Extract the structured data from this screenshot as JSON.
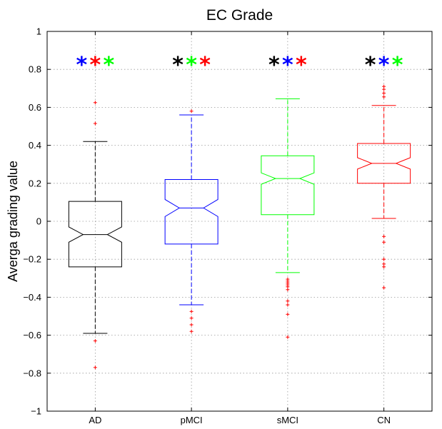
{
  "chart_data": {
    "type": "box",
    "title": "EC Grade",
    "xlabel": "",
    "ylabel": "Averga grading value",
    "ylim": [
      -1,
      1
    ],
    "yticks": [
      -1,
      -0.8,
      -0.6,
      -0.4,
      -0.2,
      0,
      0.2,
      0.4,
      0.6,
      0.8,
      1
    ],
    "grid": true,
    "notched": true,
    "outlier_color": "#ff0000",
    "categories": [
      "AD",
      "pMCI",
      "sMCI",
      "CN"
    ],
    "series": [
      {
        "category": "AD",
        "color": "#000000",
        "whisker_low": -0.59,
        "q1": -0.24,
        "median": -0.07,
        "q3": 0.105,
        "whisker_high": 0.42,
        "notch_low": -0.11,
        "notch_high": -0.03,
        "outliers": [
          0.625,
          0.515,
          -0.63,
          -0.77
        ],
        "markers": [
          "#0000ff",
          "#ff0000",
          "#00ff00"
        ]
      },
      {
        "category": "pMCI",
        "color": "#0000ff",
        "whisker_low": -0.44,
        "q1": -0.12,
        "median": 0.07,
        "q3": 0.22,
        "whisker_high": 0.56,
        "notch_low": 0.025,
        "notch_high": 0.115,
        "outliers": [
          0.58,
          -0.475,
          -0.51,
          -0.545,
          -0.58
        ],
        "markers": [
          "#000000",
          "#00ff00",
          "#ff0000"
        ]
      },
      {
        "category": "sMCI",
        "color": "#00ff00",
        "whisker_low": -0.27,
        "q1": 0.035,
        "median": 0.225,
        "q3": 0.345,
        "whisker_high": 0.645,
        "notch_low": 0.195,
        "notch_high": 0.255,
        "outliers": [
          -0.305,
          -0.315,
          -0.325,
          -0.335,
          -0.345,
          -0.36,
          -0.42,
          -0.44,
          -0.49,
          -0.61
        ],
        "markers": [
          "#000000",
          "#0000ff",
          "#ff0000"
        ]
      },
      {
        "category": "CN",
        "color": "#ff0000",
        "whisker_low": 0.015,
        "q1": 0.2,
        "median": 0.305,
        "q3": 0.41,
        "whisker_high": 0.61,
        "notch_low": 0.275,
        "notch_high": 0.335,
        "outliers": [
          0.71,
          0.695,
          0.675,
          0.655,
          -0.08,
          -0.11,
          -0.2,
          -0.225,
          -0.24,
          -0.35
        ],
        "markers": [
          "#000000",
          "#0000ff",
          "#00ff00"
        ]
      }
    ],
    "marker_y": 0.835,
    "marker_symbol": "*"
  }
}
